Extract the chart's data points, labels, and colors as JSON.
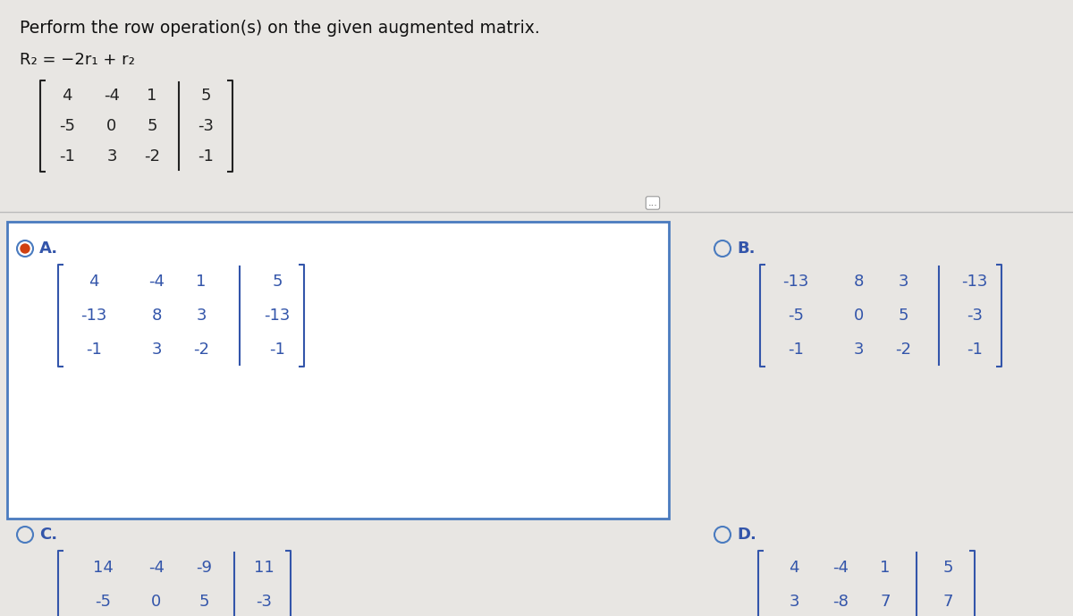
{
  "title": "Perform the row operation(s) on the given augmented matrix.",
  "row_op": "R₂ = −2r₁ + r₂",
  "original_matrix": {
    "rows": [
      [
        "4",
        "-4",
        "1",
        "5"
      ],
      [
        "-5",
        "0",
        "5",
        "-3"
      ],
      [
        "-1",
        "3",
        "-2",
        "-1"
      ]
    ],
    "augmented_col": 3
  },
  "options": {
    "A": {
      "rows": [
        [
          "4",
          "-4",
          "1",
          "5"
        ],
        [
          "-13",
          "8",
          "3",
          "-13"
        ],
        [
          "-1",
          "3",
          "-2",
          "-1"
        ]
      ],
      "augmented_col": 3,
      "selected": true
    },
    "B": {
      "rows": [
        [
          "-13",
          "8",
          "3",
          "-13"
        ],
        [
          "-5",
          "0",
          "5",
          "-3"
        ],
        [
          "-1",
          "3",
          "-2",
          "-1"
        ]
      ],
      "augmented_col": 3,
      "selected": false
    },
    "C": {
      "rows": [
        [
          "14",
          "-4",
          "-9",
          "11"
        ],
        [
          "-5",
          "0",
          "5",
          "-3"
        ]
      ],
      "augmented_col": 3,
      "selected": false
    },
    "D": {
      "rows": [
        [
          "4",
          "-4",
          "1",
          "5"
        ],
        [
          "3",
          "-8",
          "7",
          "7"
        ]
      ],
      "augmented_col": 3,
      "selected": false
    }
  },
  "bg_color": "#e8e6e3",
  "white_color": "#f5f4f1",
  "box_color": "#4a7bbf",
  "text_color": "#3355aa",
  "title_color": "#111111",
  "matrix_color_black": "#222222",
  "matrix_color_blue": "#3355aa",
  "radio_fill_color": "#d04010",
  "sep_line_color": "#bbbbbb",
  "dots_box_color": "#aaaaaa"
}
